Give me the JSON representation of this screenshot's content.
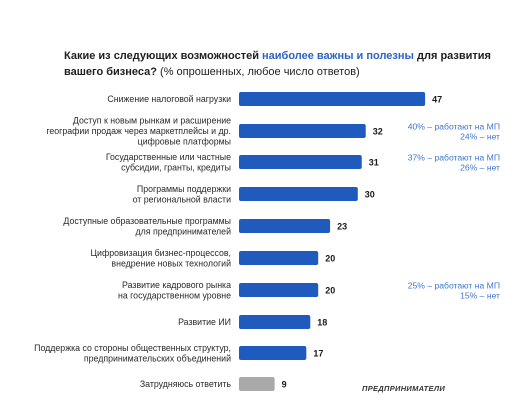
{
  "title": {
    "part1": "Какие из следующих возможностей ",
    "accent": "наиболее важны и полезны",
    "part2": " для развития вашего бизнеса?",
    "note": " (% опрошенных, любое число ответов)"
  },
  "colors": {
    "accent": "#1f5bbf",
    "muted": "#a9a9a9",
    "note": "#3c76cf"
  },
  "chart_data": {
    "type": "bar",
    "orientation": "horizontal",
    "categories": [
      [
        "Снижение налоговой нагрузки"
      ],
      [
        "Доступ к новым рынкам и расширение",
        "географии продаж через маркетплейсы и др.",
        "цифровые платформы"
      ],
      [
        "Государственные или частные",
        "субсидии, гранты, кредиты"
      ],
      [
        "Программы поддержки",
        "от региональной власти"
      ],
      [
        "Доступные образовательные программы",
        "для предпринимателей"
      ],
      [
        "Цифровизация бизнес-процессов,",
        "внедрение новых технологий"
      ],
      [
        "Развитие кадрового рынка",
        "на государственном уровне"
      ],
      [
        "Развитие ИИ"
      ],
      [
        "Поддержка со стороны общественных структур,",
        "предпринимательских объединений"
      ],
      [
        "Затрудняюсь ответить"
      ]
    ],
    "values": [
      47,
      32,
      31,
      30,
      23,
      20,
      20,
      18,
      17,
      9
    ],
    "bar_colors": [
      "#1f5bbf",
      "#1f5bbf",
      "#1f5bbf",
      "#1f5bbf",
      "#1f5bbf",
      "#1f5bbf",
      "#1f5bbf",
      "#1f5bbf",
      "#1f5bbf",
      "#a9a9a9"
    ],
    "annotations": [
      {
        "index": 1,
        "lines": [
          "40% – работают на МП",
          "24% – нет"
        ]
      },
      {
        "index": 2,
        "lines": [
          "37% – работают на МП",
          "26% – нет"
        ]
      },
      {
        "index": 6,
        "lines": [
          "25% – работают на МП",
          "15% – нет"
        ]
      }
    ],
    "legend": "none",
    "grid": false
  },
  "source": "ПРЕДПРИНИМАТЕЛИ"
}
